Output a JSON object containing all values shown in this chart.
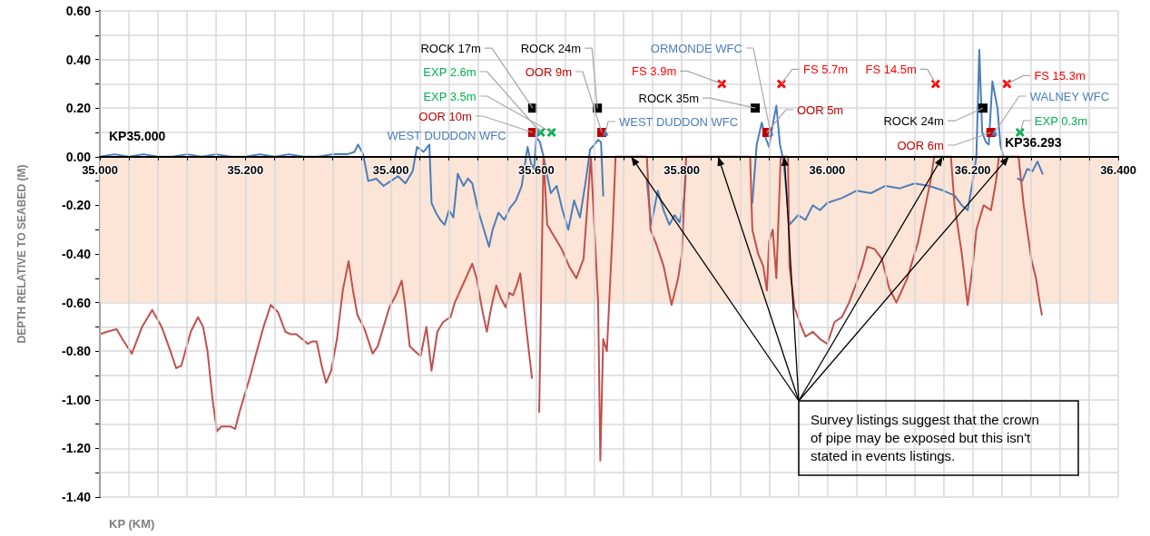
{
  "chart_data": {
    "type": "line",
    "xlabel": "KP (KM)",
    "ylabel": "DEPTH RELATIVE TO SEABED (M)",
    "xlim": [
      35,
      36.4
    ],
    "xticks": [
      {
        "value": 35,
        "label": "35.000"
      },
      {
        "value": 35.04,
        "label": null
      },
      {
        "value": 35.08,
        "label": null
      },
      {
        "value": 35.12,
        "label": null
      },
      {
        "value": 35.16,
        "label": null
      },
      {
        "value": 35.2,
        "label": "35.200"
      },
      {
        "value": 35.24,
        "label": null
      },
      {
        "value": 35.28,
        "label": null
      },
      {
        "value": 35.32,
        "label": null
      },
      {
        "value": 35.36,
        "label": null
      },
      {
        "value": 35.4,
        "label": "35.400"
      },
      {
        "value": 35.44,
        "label": null
      },
      {
        "value": 35.48,
        "label": null
      },
      {
        "value": 35.52,
        "label": null
      },
      {
        "value": 35.56,
        "label": null
      },
      {
        "value": 35.6,
        "label": "35.600"
      },
      {
        "value": 35.64,
        "label": null
      },
      {
        "value": 35.68,
        "label": null
      },
      {
        "value": 35.72,
        "label": null
      },
      {
        "value": 35.76,
        "label": null
      },
      {
        "value": 35.8,
        "label": "35.800"
      },
      {
        "value": 35.84,
        "label": null
      },
      {
        "value": 35.88,
        "label": null
      },
      {
        "value": 35.92,
        "label": null
      },
      {
        "value": 35.96,
        "label": null
      },
      {
        "value": 36,
        "label": "36.000"
      },
      {
        "value": 36.04,
        "label": null
      },
      {
        "value": 36.08,
        "label": null
      },
      {
        "value": 36.12,
        "label": null
      },
      {
        "value": 36.16,
        "label": null
      },
      {
        "value": 36.2,
        "label": "36.200"
      },
      {
        "value": 36.24,
        "label": null
      },
      {
        "value": 36.28,
        "label": null
      },
      {
        "value": 36.32,
        "label": null
      },
      {
        "value": 36.36,
        "label": null
      },
      {
        "value": 36.4,
        "label": "36.400"
      }
    ],
    "ylim": [
      -1.4,
      0.6
    ],
    "yticks": [
      {
        "value": -1.4,
        "label": "-1.40"
      },
      {
        "value": -1.3,
        "label": null
      },
      {
        "value": -1.2,
        "label": "-1.20"
      },
      {
        "value": -1.1,
        "label": null
      },
      {
        "value": -1,
        "label": "-1.00"
      },
      {
        "value": -0.9,
        "label": null
      },
      {
        "value": -0.8,
        "label": "-0.80"
      },
      {
        "value": -0.7,
        "label": null
      },
      {
        "value": -0.6,
        "label": "-0.60"
      },
      {
        "value": -0.5,
        "label": null
      },
      {
        "value": -0.4,
        "label": "-0.40"
      },
      {
        "value": -0.3,
        "label": null
      },
      {
        "value": -0.2,
        "label": "-0.20"
      },
      {
        "value": -0.1,
        "label": null
      },
      {
        "value": 0,
        "label": "0.00"
      },
      {
        "value": 0.1,
        "label": null
      },
      {
        "value": 0.2,
        "label": "0.20"
      },
      {
        "value": 0.3,
        "label": null
      },
      {
        "value": 0.4,
        "label": "0.40"
      },
      {
        "value": 0.5,
        "label": null
      },
      {
        "value": 0.6,
        "label": "0.60"
      }
    ],
    "grid": true,
    "bands": [
      {
        "axis": "y",
        "from": -0.6,
        "to": 0,
        "color": "#fce4d6"
      }
    ],
    "series": [
      {
        "color": "#4a7ebb",
        "marker": "none",
        "x": [
          35.0,
          35.02,
          35.04,
          35.06,
          35.08,
          35.1,
          35.12,
          35.14,
          35.16,
          35.18,
          35.2,
          35.22,
          35.24,
          35.26,
          35.28,
          35.3,
          35.32,
          35.34,
          35.35,
          35.355,
          35.362,
          35.369,
          35.38,
          35.39,
          35.4,
          35.41,
          35.42,
          35.43,
          35.436,
          35.445,
          35.453,
          35.456,
          35.462,
          35.468,
          35.474,
          35.48,
          35.486,
          35.492,
          35.5,
          35.506,
          35.512,
          35.52,
          35.528,
          35.535,
          35.54,
          35.548,
          35.556,
          35.564,
          35.572,
          35.58,
          35.588,
          35.593,
          35.597,
          35.6,
          35.605,
          35.61,
          35.615,
          35.62,
          35.628,
          35.636,
          35.644,
          35.652,
          35.66,
          35.668,
          35.674,
          35.68,
          35.685,
          35.689,
          35.692,
          35.72,
          35.752,
          35.758,
          35.767,
          35.775,
          35.783,
          35.79,
          35.797,
          35.803,
          35.806,
          35.85,
          35.897,
          35.903,
          35.91,
          35.915,
          35.92,
          35.925,
          35.93,
          35.935,
          35.94,
          35.948,
          35.96,
          35.97,
          35.98,
          35.99,
          36.0,
          36.02,
          36.04,
          36.06,
          36.08,
          36.1,
          36.12,
          36.14,
          36.16,
          36.175,
          36.185,
          36.193,
          36.2,
          36.205,
          36.209,
          36.213,
          36.218,
          36.222,
          36.227,
          36.234,
          36.238,
          36.242,
          36.25,
          36.262,
          36.268,
          36.275,
          36.282,
          36.289,
          36.296
        ],
        "values": [
          0.0,
          0.01,
          0.0,
          0.01,
          0.0,
          0.0,
          0.01,
          0.0,
          0.01,
          0.0,
          0.0,
          0.01,
          0.0,
          0.01,
          0.0,
          0.0,
          0.01,
          0.01,
          0.02,
          0.05,
          0.01,
          -0.1,
          -0.09,
          -0.12,
          -0.1,
          -0.08,
          -0.11,
          -0.06,
          0.04,
          0.02,
          0.05,
          -0.19,
          -0.23,
          -0.26,
          -0.28,
          -0.22,
          -0.25,
          -0.07,
          -0.12,
          -0.09,
          -0.11,
          -0.22,
          -0.3,
          -0.37,
          -0.3,
          -0.23,
          -0.26,
          -0.21,
          -0.18,
          -0.12,
          0.04,
          -0.03,
          -0.05,
          0.08,
          0.06,
          0.0,
          -0.08,
          -0.15,
          -0.12,
          -0.22,
          -0.3,
          -0.18,
          -0.25,
          -0.1,
          0.03,
          0.05,
          0.07,
          0.06,
          -0.16,
          null,
          -0.1,
          -0.28,
          -0.14,
          -0.22,
          -0.28,
          -0.24,
          -0.27,
          -0.18,
          -0.05,
          null,
          -0.19,
          0.05,
          0.14,
          0.08,
          0.04,
          0.13,
          0.21,
          0.05,
          -0.02,
          -0.28,
          -0.24,
          -0.26,
          -0.2,
          -0.22,
          -0.19,
          -0.17,
          -0.14,
          -0.15,
          -0.12,
          -0.13,
          -0.11,
          -0.12,
          -0.14,
          -0.16,
          -0.2,
          -0.22,
          -0.1,
          0.0,
          0.44,
          0.1,
          0.06,
          0.05,
          0.31,
          0.2,
          0.05,
          0.0,
          null,
          -0.09,
          -0.1,
          -0.05,
          -0.06,
          -0.02,
          -0.07
        ]
      },
      {
        "color": "#c0504d",
        "marker": "none",
        "x": [
          35.0,
          35.01,
          35.023,
          35.033,
          35.044,
          35.058,
          35.072,
          35.085,
          35.097,
          35.105,
          35.112,
          35.125,
          35.135,
          35.142,
          35.148,
          35.155,
          35.161,
          35.167,
          35.173,
          35.18,
          35.186,
          35.192,
          35.199,
          35.207,
          35.214,
          35.225,
          35.235,
          35.245,
          35.255,
          35.262,
          35.27,
          35.278,
          35.286,
          35.292,
          35.298,
          35.305,
          35.311,
          35.318,
          35.326,
          35.334,
          35.342,
          35.348,
          35.354,
          35.364,
          35.375,
          35.382,
          35.39,
          35.398,
          35.407,
          35.415,
          35.42,
          35.426,
          35.433,
          35.441,
          35.449,
          35.456,
          35.464,
          35.472,
          35.482,
          35.488,
          35.494,
          35.503,
          35.512,
          35.518,
          35.525,
          35.532,
          35.538,
          35.545,
          35.551,
          35.558,
          35.563,
          35.568,
          35.573,
          35.578,
          35.586,
          35.594,
          35.6,
          35.604,
          35.607,
          35.61,
          35.615,
          35.625,
          35.635,
          35.645,
          35.655,
          35.665,
          35.675,
          35.685,
          35.688,
          35.692,
          35.697,
          35.705,
          35.709,
          35.73,
          35.752,
          35.757,
          35.765,
          35.775,
          35.786,
          35.795,
          35.8,
          35.806,
          35.85,
          35.894,
          35.897,
          35.905,
          35.912,
          35.917,
          35.92,
          35.925,
          35.93,
          35.936,
          35.946,
          35.948,
          35.955,
          35.962,
          35.97,
          35.98,
          35.99,
          36.0,
          36.01,
          36.02,
          36.03,
          36.04,
          36.048,
          36.055,
          36.065,
          36.075,
          36.085,
          36.095,
          36.11,
          36.125,
          36.135,
          36.142,
          36.147,
          36.158,
          36.17,
          36.175,
          36.185,
          36.193,
          36.2,
          36.205,
          36.215,
          36.225,
          36.232,
          36.236,
          36.25,
          36.263,
          36.27,
          36.281,
          36.287,
          36.292,
          36.295
        ],
        "values": [
          -0.73,
          -0.72,
          -0.71,
          -0.76,
          -0.81,
          -0.7,
          -0.63,
          -0.7,
          -0.8,
          -0.87,
          -0.86,
          -0.72,
          -0.66,
          -0.7,
          -0.8,
          -1.0,
          -1.13,
          -1.11,
          -1.11,
          -1.11,
          -1.12,
          -1.05,
          -0.98,
          -0.9,
          -0.82,
          -0.7,
          -0.61,
          -0.64,
          -0.72,
          -0.73,
          -0.73,
          -0.75,
          -0.77,
          -0.76,
          -0.76,
          -0.86,
          -0.93,
          -0.88,
          -0.75,
          -0.55,
          -0.43,
          -0.55,
          -0.65,
          -0.71,
          -0.81,
          -0.78,
          -0.7,
          -0.62,
          -0.57,
          -0.51,
          -0.62,
          -0.78,
          -0.8,
          -0.82,
          -0.7,
          -0.88,
          -0.72,
          -0.68,
          -0.66,
          -0.6,
          -0.56,
          -0.5,
          -0.44,
          -0.5,
          -0.62,
          -0.72,
          -0.62,
          -0.53,
          -0.58,
          -0.62,
          -0.56,
          -0.57,
          -0.53,
          -0.48,
          -0.7,
          -0.91,
          null,
          -1.05,
          -0.5,
          0.0,
          -0.28,
          -0.33,
          -0.38,
          -0.45,
          -0.5,
          -0.42,
          0.0,
          -0.6,
          -1.25,
          -0.75,
          -0.8,
          -0.3,
          0.0,
          0.0,
          0.0,
          -0.3,
          -0.36,
          -0.45,
          -0.61,
          -0.5,
          -0.4,
          0.0,
          0.0,
          0.0,
          -0.3,
          -0.4,
          -0.45,
          -0.55,
          -0.35,
          -0.3,
          -0.5,
          0.0,
          0.0,
          -0.45,
          -0.62,
          -0.68,
          -0.74,
          -0.72,
          -0.75,
          -0.77,
          -0.68,
          -0.66,
          -0.6,
          -0.52,
          -0.45,
          -0.37,
          -0.38,
          -0.42,
          -0.54,
          -0.6,
          -0.5,
          -0.35,
          -0.2,
          -0.1,
          0.0,
          0.0,
          0.0,
          -0.2,
          -0.4,
          -0.61,
          -0.45,
          -0.3,
          -0.2,
          -0.22,
          -0.1,
          0.0,
          0.0,
          0.0,
          -0.2,
          -0.43,
          -0.5,
          -0.6,
          -0.65
        ]
      },
      {
        "type": "scatter",
        "color": "#000000",
        "marker": "square",
        "x": [
          35.595,
          35.684,
          35.901,
          36.214
        ],
        "values": [
          0.2,
          0.2,
          0.2,
          0.2
        ]
      },
      {
        "type": "scatter",
        "color": "#c00000",
        "marker": "square",
        "x": [
          35.595,
          35.69,
          35.917,
          36.225
        ],
        "values": [
          0.1,
          0.1,
          0.1,
          0.1
        ]
      },
      {
        "type": "scatter",
        "color": "#00b050",
        "marker": "cross",
        "x": [
          35.606,
          35.621,
          36.265
        ],
        "values": [
          0.1,
          0.1,
          0.1
        ]
      },
      {
        "type": "scatter",
        "color": "#ff0000",
        "marker": "cross",
        "x": [
          35.855,
          35.937,
          36.149,
          36.247
        ],
        "values": [
          0.3,
          0.3,
          0.3,
          0.3
        ]
      },
      {
        "type": "scatter",
        "color": "#4a7ebb",
        "marker": "triangle",
        "x": [
          35.601,
          35.695,
          35.922,
          36.23
        ],
        "values": [
          0.1,
          0.1,
          0.1,
          0.1
        ]
      }
    ],
    "annotations": [
      {
        "text": "ROCK 17m",
        "x": 35.595,
        "y": 0.2
      },
      {
        "text": "EXP 2.6m",
        "x": 35.606,
        "y": 0.1
      },
      {
        "text": "EXP 3.5m",
        "x": 35.621,
        "y": 0.1
      },
      {
        "text": "OOR 10m",
        "x": 35.595,
        "y": 0.1
      },
      {
        "text": "WEST DUDDON WFC",
        "x": 35.601,
        "y": 0.1
      },
      {
        "text": "ROCK 24m",
        "x": 35.684,
        "y": 0.2
      },
      {
        "text": "OOR 9m",
        "x": 35.69,
        "y": 0.1
      },
      {
        "text": "WEST DUDDON WFC",
        "x": 35.695,
        "y": 0.1
      },
      {
        "text": "ORMONDE WFC",
        "x": 35.922,
        "y": 0.1
      },
      {
        "text": "FS 3.9m",
        "x": 35.855,
        "y": 0.3
      },
      {
        "text": "ROCK 35m",
        "x": 35.901,
        "y": 0.2
      },
      {
        "text": "FS 5.7m",
        "x": 35.937,
        "y": 0.3
      },
      {
        "text": "OOR 5m",
        "x": 35.917,
        "y": 0.1
      },
      {
        "text": "FS 14.5m",
        "x": 36.149,
        "y": 0.3
      },
      {
        "text": "FS 15.3m",
        "x": 36.247,
        "y": 0.3
      },
      {
        "text": "WALNEY WFC",
        "x": 36.23,
        "y": 0.1
      },
      {
        "text": "ROCK 24m",
        "x": 36.214,
        "y": 0.2
      },
      {
        "text": "EXP 0.3m",
        "x": 36.265,
        "y": 0.1
      },
      {
        "text": "OOR 6m",
        "x": 36.225,
        "y": 0.1
      },
      {
        "text": "KP35.000",
        "x": 35.0,
        "y": 0
      },
      {
        "text": "KP36.293",
        "x": 36.293,
        "y": 0
      },
      {
        "text": "Survey listings suggest that the crown of pipe may be exposed but this isn't stated in events listings.",
        "x": 35.941,
        "y": 0
      }
    ]
  }
}
